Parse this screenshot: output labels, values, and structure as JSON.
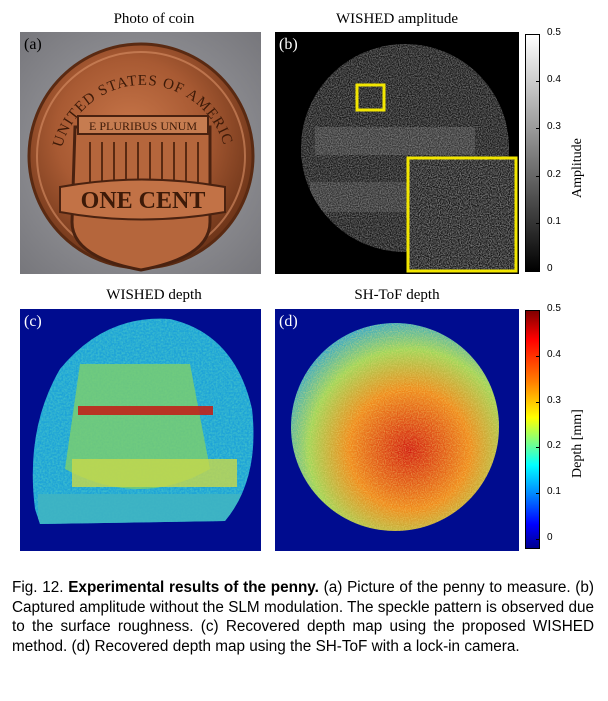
{
  "panels": {
    "a": {
      "title": "Photo of coin",
      "label": "(a)",
      "coin_text": {
        "top": "UNITED STATES OF AMERICA",
        "motto": "E PLURIBUS UNUM",
        "value": "ONE CENT"
      }
    },
    "b": {
      "title": "WISHED amplitude",
      "label": "(b)"
    },
    "c": {
      "title": "WISHED depth",
      "label": "(c)"
    },
    "d": {
      "title": "SH-ToF depth",
      "label": "(d)"
    }
  },
  "amplitude_colorbar": {
    "label": "Amplitude",
    "ticks": [
      "0.5",
      "0.4",
      "0.3",
      "0.2",
      "0.1",
      "0"
    ]
  },
  "depth_colorbar": {
    "label": "Depth [mm]",
    "ticks": [
      "0.5",
      "0.4",
      "0.3",
      "0.2",
      "0.1",
      "0"
    ]
  },
  "colors": {
    "highlight_box": "#f2e600",
    "jet_background": "#000c8f"
  },
  "caption": {
    "figure": "Fig. 12.",
    "bold": "Experimental results of the penny.",
    "text": "(a) Picture of the penny to measure. (b) Captured amplitude without the SLM modulation. The speckle pattern is observed due to the surface roughness. (c) Recovered depth map using the proposed WISHED method. (d) Recovered depth map using the SH-ToF with a lock-in camera."
  }
}
